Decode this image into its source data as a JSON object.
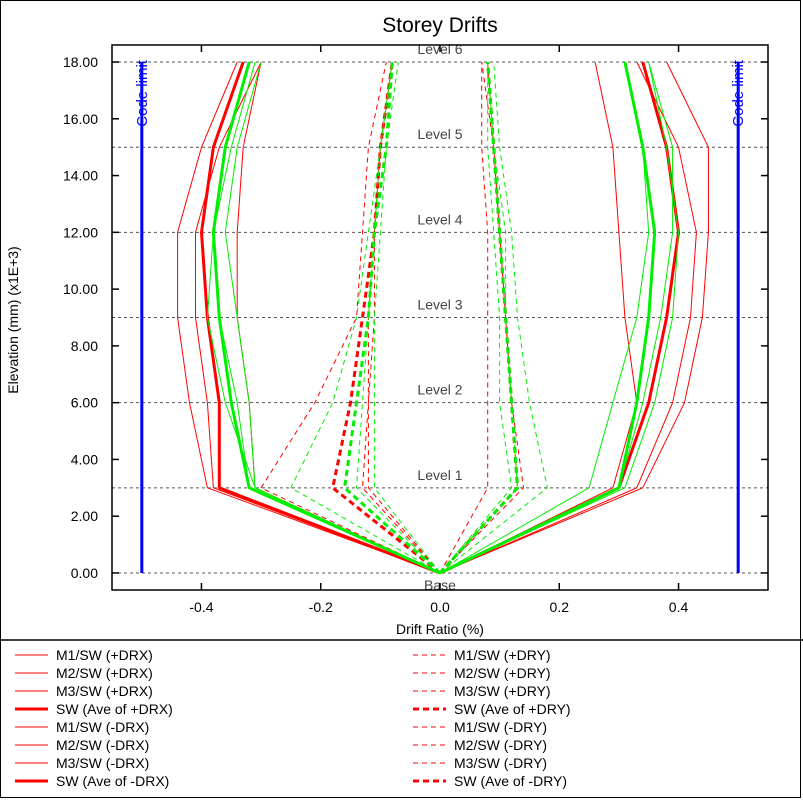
{
  "chart_data": {
    "type": "line",
    "title": "Storey Drifts",
    "xlabel": "Drift Ratio (%)",
    "ylabel": "Elevation (mm) (x1E+3)",
    "xlim": [
      -0.55,
      0.55
    ],
    "ylim": [
      -0.6,
      18.6
    ],
    "x_ticks": [
      "-0.4",
      "-0.2",
      "0.0",
      "0.2",
      "0.4"
    ],
    "x_tick_values": [
      -0.4,
      -0.2,
      0.0,
      0.2,
      0.4
    ],
    "y_ticks": [
      "0.00",
      "2.00",
      "4.00",
      "6.00",
      "8.00",
      "10.00",
      "12.00",
      "14.00",
      "16.00",
      "18.00"
    ],
    "y_tick_values": [
      0,
      2,
      4,
      6,
      8,
      10,
      12,
      14,
      16,
      18
    ],
    "storey_elevations": [
      0,
      3,
      6,
      9,
      12,
      15,
      18
    ],
    "levels": [
      {
        "label": "Base",
        "elevation": 0
      },
      {
        "label": "Level 1",
        "elevation": 3
      },
      {
        "label": "Level 2",
        "elevation": 6
      },
      {
        "label": "Level 3",
        "elevation": 9
      },
      {
        "label": "Level 4",
        "elevation": 12
      },
      {
        "label": "Level 5",
        "elevation": 15
      },
      {
        "label": "Level 6",
        "elevation": 18
      }
    ],
    "code_limit": {
      "label": "Code limit",
      "values": [
        -0.5,
        0.5
      ],
      "y_range": [
        0,
        18
      ],
      "color": "#0000ff"
    },
    "series": [
      {
        "name": "M1/SW (+DRX)",
        "color": "#ff0000",
        "style": "solid",
        "width": 1,
        "x": [
          0.0,
          0.33,
          0.39,
          0.42,
          0.43,
          0.4,
          0.33
        ],
        "y": [
          0,
          3,
          6,
          9,
          12,
          15,
          18
        ]
      },
      {
        "name": "M2/SW (+DRX)",
        "color": "#ff0000",
        "style": "solid",
        "width": 1,
        "x": [
          0.0,
          0.34,
          0.41,
          0.44,
          0.45,
          0.45,
          0.38
        ],
        "y": [
          0,
          3,
          6,
          9,
          12,
          15,
          18
        ]
      },
      {
        "name": "M3/SW (+DRX)",
        "color": "#ff0000",
        "style": "solid",
        "width": 1,
        "x": [
          0.0,
          0.29,
          0.33,
          0.31,
          0.3,
          0.29,
          0.26
        ],
        "y": [
          0,
          3,
          6,
          9,
          12,
          15,
          18
        ]
      },
      {
        "name": "SW (Ave of +DRX)",
        "color": "#ff0000",
        "style": "solid",
        "width": 3,
        "x": [
          0.0,
          0.3,
          0.35,
          0.38,
          0.4,
          0.38,
          0.34
        ],
        "y": [
          0,
          3,
          6,
          9,
          12,
          15,
          18
        ]
      },
      {
        "name": "M1/SW (-DRX)",
        "color": "#ff0000",
        "style": "solid",
        "width": 1,
        "x": [
          0.0,
          -0.38,
          -0.39,
          -0.41,
          -0.41,
          -0.37,
          -0.3
        ],
        "y": [
          0,
          3,
          6,
          9,
          12,
          15,
          18
        ]
      },
      {
        "name": "M2/SW (-DRX)",
        "color": "#ff0000",
        "style": "solid",
        "width": 1,
        "x": [
          0.0,
          -0.39,
          -0.42,
          -0.44,
          -0.44,
          -0.4,
          -0.34
        ],
        "y": [
          0,
          3,
          6,
          9,
          12,
          15,
          18
        ]
      },
      {
        "name": "M3/SW (-DRX)",
        "color": "#ff0000",
        "style": "solid",
        "width": 1,
        "x": [
          0.0,
          -0.31,
          -0.32,
          -0.34,
          -0.34,
          -0.33,
          -0.3
        ],
        "y": [
          0,
          3,
          6,
          9,
          12,
          15,
          18
        ]
      },
      {
        "name": "SW (Ave of -DRX)",
        "color": "#ff0000",
        "style": "solid",
        "width": 3,
        "x": [
          0.0,
          -0.37,
          -0.37,
          -0.39,
          -0.4,
          -0.38,
          -0.33
        ],
        "y": [
          0,
          3,
          6,
          9,
          12,
          15,
          18
        ]
      },
      {
        "name": "M1/SW (+DRY)",
        "color": "#ff0000",
        "style": "dashed",
        "width": 1,
        "x": [
          0.0,
          0.14,
          0.12,
          0.11,
          0.1,
          0.09,
          0.08
        ],
        "y": [
          0,
          3,
          6,
          9,
          12,
          15,
          18
        ]
      },
      {
        "name": "M2/SW (+DRY)",
        "color": "#ff0000",
        "style": "dashed",
        "width": 1,
        "x": [
          0.0,
          0.13,
          0.12,
          0.11,
          0.1,
          0.09,
          0.07
        ],
        "y": [
          0,
          3,
          6,
          9,
          12,
          15,
          18
        ]
      },
      {
        "name": "M3/SW (+DRY)",
        "color": "#ff0000",
        "style": "dashed",
        "width": 1,
        "x": [
          0.0,
          0.08,
          0.08,
          0.08,
          0.08,
          0.07,
          0.07
        ],
        "y": [
          0,
          3,
          6,
          9,
          12,
          15,
          18
        ]
      },
      {
        "name": "SW (Ave of +DRY)",
        "color": "#ff0000",
        "style": "dashed",
        "width": 3,
        "x": [
          0.0,
          0.13,
          0.12,
          0.11,
          0.1,
          0.09,
          0.08
        ],
        "y": [
          0,
          3,
          6,
          9,
          12,
          15,
          18
        ]
      },
      {
        "name": "M1/SW (-DRY)",
        "color": "#ff0000",
        "style": "dashed",
        "width": 1,
        "x": [
          0.0,
          -0.3,
          -0.21,
          -0.14,
          -0.13,
          -0.12,
          -0.09
        ],
        "y": [
          0,
          3,
          6,
          9,
          12,
          15,
          18
        ]
      },
      {
        "name": "M2/SW (-DRY)",
        "color": "#ff0000",
        "style": "dashed",
        "width": 1,
        "x": [
          0.0,
          -0.12,
          -0.12,
          -0.12,
          -0.11,
          -0.1,
          -0.08
        ],
        "y": [
          0,
          3,
          6,
          9,
          12,
          15,
          18
        ]
      },
      {
        "name": "M3/SW (-DRY)",
        "color": "#ff0000",
        "style": "dashed",
        "width": 1,
        "x": [
          0.0,
          -0.13,
          -0.12,
          -0.11,
          -0.11,
          -0.1,
          -0.08
        ],
        "y": [
          0,
          3,
          6,
          9,
          12,
          15,
          18
        ]
      },
      {
        "name": "SW (Ave of -DRY)",
        "color": "#ff0000",
        "style": "dashed",
        "width": 3,
        "x": [
          0.0,
          -0.18,
          -0.15,
          -0.13,
          -0.11,
          -0.1,
          -0.08
        ],
        "y": [
          0,
          3,
          6,
          9,
          12,
          15,
          18
        ]
      },
      {
        "color": "#00ee00",
        "style": "solid",
        "width": 1,
        "x": [
          0.0,
          0.3,
          0.34,
          0.37,
          0.39,
          0.39,
          0.35
        ],
        "y": [
          0,
          3,
          6,
          9,
          12,
          15,
          18
        ]
      },
      {
        "color": "#00ee00",
        "style": "solid",
        "width": 1,
        "x": [
          0.0,
          0.25,
          0.29,
          0.33,
          0.35,
          0.34,
          0.31
        ],
        "y": [
          0,
          3,
          6,
          9,
          12,
          15,
          18
        ]
      },
      {
        "color": "#00ee00",
        "style": "solid",
        "width": 1,
        "x": [
          0.0,
          0.31,
          0.36,
          0.39,
          0.4,
          0.38,
          0.35
        ],
        "y": [
          0,
          3,
          6,
          9,
          12,
          15,
          18
        ]
      },
      {
        "color": "#00ee00",
        "style": "solid",
        "width": 3,
        "x": [
          0.0,
          0.3,
          0.33,
          0.35,
          0.36,
          0.34,
          0.31
        ],
        "y": [
          0,
          3,
          6,
          9,
          12,
          15,
          18
        ]
      },
      {
        "color": "#00ee00",
        "style": "solid",
        "width": 1,
        "x": [
          0.0,
          -0.32,
          -0.34,
          -0.37,
          -0.38,
          -0.35,
          -0.31
        ],
        "y": [
          0,
          3,
          6,
          9,
          12,
          15,
          18
        ]
      },
      {
        "color": "#00ee00",
        "style": "solid",
        "width": 1,
        "x": [
          0.0,
          -0.31,
          -0.32,
          -0.34,
          -0.36,
          -0.34,
          -0.3
        ],
        "y": [
          0,
          3,
          6,
          9,
          12,
          15,
          18
        ]
      },
      {
        "color": "#00ee00",
        "style": "solid",
        "width": 1,
        "x": [
          0.0,
          -0.31,
          -0.36,
          -0.39,
          -0.38,
          -0.36,
          -0.32
        ],
        "y": [
          0,
          3,
          6,
          9,
          12,
          15,
          18
        ]
      },
      {
        "color": "#00ee00",
        "style": "solid",
        "width": 3,
        "x": [
          0.0,
          -0.32,
          -0.35,
          -0.37,
          -0.38,
          -0.36,
          -0.32
        ],
        "y": [
          0,
          3,
          6,
          9,
          12,
          15,
          18
        ]
      },
      {
        "color": "#00ee00",
        "style": "dashed",
        "width": 1,
        "x": [
          0.0,
          0.18,
          0.15,
          0.13,
          0.12,
          0.1,
          0.09
        ],
        "y": [
          0,
          3,
          6,
          9,
          12,
          15,
          18
        ]
      },
      {
        "color": "#00ee00",
        "style": "dashed",
        "width": 1,
        "x": [
          0.0,
          0.13,
          0.12,
          0.11,
          0.11,
          0.09,
          0.08
        ],
        "y": [
          0,
          3,
          6,
          9,
          12,
          15,
          18
        ]
      },
      {
        "color": "#00ee00",
        "style": "dashed",
        "width": 1,
        "x": [
          0.0,
          0.12,
          0.1,
          0.1,
          0.09,
          0.08,
          0.08
        ],
        "y": [
          0,
          3,
          6,
          9,
          12,
          15,
          18
        ]
      },
      {
        "color": "#00ee00",
        "style": "dashed",
        "width": 3,
        "x": [
          0.0,
          0.13,
          0.12,
          0.11,
          0.1,
          0.09,
          0.08
        ],
        "y": [
          0,
          3,
          6,
          9,
          12,
          15,
          18
        ]
      },
      {
        "color": "#00ee00",
        "style": "dashed",
        "width": 1,
        "x": [
          0.0,
          -0.25,
          -0.18,
          -0.14,
          -0.12,
          -0.1,
          -0.08
        ],
        "y": [
          0,
          3,
          6,
          9,
          12,
          15,
          18
        ]
      },
      {
        "color": "#00ee00",
        "style": "dashed",
        "width": 1,
        "x": [
          0.0,
          -0.14,
          -0.13,
          -0.12,
          -0.11,
          -0.1,
          -0.08
        ],
        "y": [
          0,
          3,
          6,
          9,
          12,
          15,
          18
        ]
      },
      {
        "color": "#00ee00",
        "style": "dashed",
        "width": 1,
        "x": [
          0.0,
          -0.11,
          -0.11,
          -0.11,
          -0.1,
          -0.09,
          -0.07
        ],
        "y": [
          0,
          3,
          6,
          9,
          12,
          15,
          18
        ]
      },
      {
        "color": "#00ee00",
        "style": "dashed",
        "width": 3,
        "x": [
          0.0,
          -0.16,
          -0.14,
          -0.12,
          -0.11,
          -0.09,
          -0.08
        ],
        "y": [
          0,
          3,
          6,
          9,
          12,
          15,
          18
        ]
      }
    ],
    "legend_placement": "bottom",
    "grid": "horizontal dashed lines at storey elevations"
  }
}
